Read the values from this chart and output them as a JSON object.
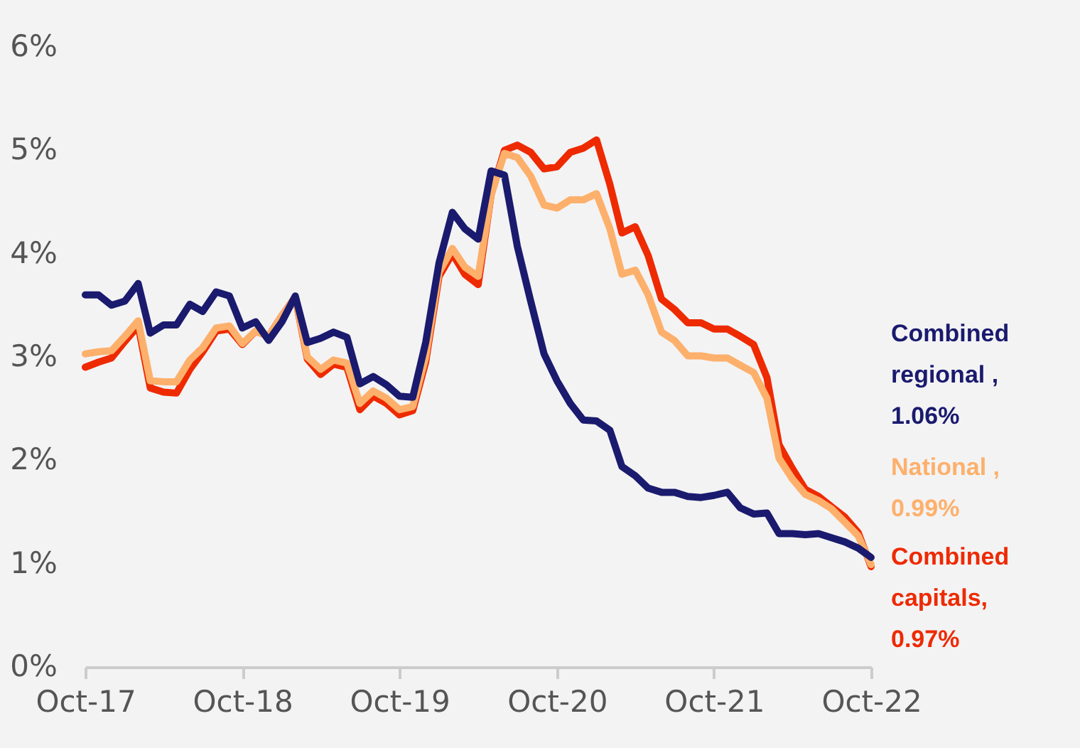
{
  "chart_data": {
    "type": "line",
    "line_style": "solid",
    "marker": "none",
    "grid": false,
    "x": [
      "2017-10",
      "2017-11",
      "2017-12",
      "2018-01",
      "2018-02",
      "2018-03",
      "2018-04",
      "2018-05",
      "2018-06",
      "2018-07",
      "2018-08",
      "2018-09",
      "2018-10",
      "2018-11",
      "2018-12",
      "2019-01",
      "2019-02",
      "2019-03",
      "2019-04",
      "2019-05",
      "2019-06",
      "2019-07",
      "2019-08",
      "2019-09",
      "2019-10",
      "2019-11",
      "2019-12",
      "2020-01",
      "2020-02",
      "2020-03",
      "2020-04",
      "2020-05",
      "2020-06",
      "2020-07",
      "2020-08",
      "2020-09",
      "2020-10",
      "2020-11",
      "2020-12",
      "2021-01",
      "2021-02",
      "2021-03",
      "2021-04",
      "2021-05",
      "2021-06",
      "2021-07",
      "2021-08",
      "2021-09",
      "2021-10",
      "2021-11",
      "2021-12",
      "2022-01",
      "2022-02",
      "2022-03",
      "2022-04",
      "2022-05",
      "2022-06",
      "2022-07",
      "2022-08",
      "2022-09",
      "2022-10"
    ],
    "xlim": [
      "2017-10",
      "2022-10"
    ],
    "xticks": [
      {
        "value": "2017-10",
        "label": "Oct-17"
      },
      {
        "value": "2018-10",
        "label": "Oct-18"
      },
      {
        "value": "2019-10",
        "label": "Oct-19"
      },
      {
        "value": "2020-10",
        "label": "Oct-20"
      },
      {
        "value": "2021-10",
        "label": "Oct-21"
      },
      {
        "value": "2022-10",
        "label": "Oct-22"
      }
    ],
    "ylim": [
      0,
      6
    ],
    "yticks": [
      {
        "value": 0,
        "label": "0%"
      },
      {
        "value": 1,
        "label": "1%"
      },
      {
        "value": 2,
        "label": "2%"
      },
      {
        "value": 3,
        "label": "3%"
      },
      {
        "value": 4,
        "label": "4%"
      },
      {
        "value": 5,
        "label": "5%"
      },
      {
        "value": 6,
        "label": "6%"
      }
    ],
    "series": [
      {
        "name": "Combined regional , 1.06%",
        "color": "#1a1a6e",
        "values": [
          3.6,
          3.6,
          3.5,
          3.54,
          3.71,
          3.23,
          3.31,
          3.31,
          3.51,
          3.44,
          3.63,
          3.59,
          3.28,
          3.34,
          3.16,
          3.34,
          3.59,
          3.14,
          3.18,
          3.24,
          3.19,
          2.74,
          2.81,
          2.73,
          2.62,
          2.61,
          3.14,
          3.91,
          4.4,
          4.24,
          4.14,
          4.8,
          4.76,
          4.07,
          3.54,
          3.03,
          2.77,
          2.55,
          2.39,
          2.38,
          2.29,
          1.94,
          1.85,
          1.73,
          1.69,
          1.69,
          1.65,
          1.64,
          1.66,
          1.69,
          1.54,
          1.48,
          1.49,
          1.29,
          1.29,
          1.28,
          1.29,
          1.25,
          1.21,
          1.15,
          1.06
        ]
      },
      {
        "name": "National , 0.99%",
        "color": "#fdb06b",
        "values": [
          3.03,
          3.05,
          3.06,
          3.2,
          3.35,
          2.77,
          2.76,
          2.76,
          2.97,
          3.09,
          3.28,
          3.3,
          3.13,
          3.25,
          3.2,
          3.4,
          3.58,
          3.0,
          2.88,
          2.97,
          2.94,
          2.55,
          2.67,
          2.6,
          2.49,
          2.52,
          3.0,
          3.82,
          4.05,
          3.87,
          3.78,
          4.57,
          4.97,
          4.93,
          4.75,
          4.47,
          4.44,
          4.52,
          4.52,
          4.58,
          4.24,
          3.8,
          3.84,
          3.6,
          3.24,
          3.16,
          3.01,
          3.01,
          2.99,
          2.99,
          2.92,
          2.85,
          2.6,
          2.02,
          1.82,
          1.67,
          1.61,
          1.53,
          1.4,
          1.27,
          0.99
        ]
      },
      {
        "name": "Combined capitals, 0.97%",
        "color": "#ee2a00",
        "values": [
          2.9,
          2.95,
          2.99,
          3.15,
          3.3,
          2.7,
          2.66,
          2.65,
          2.88,
          3.05,
          3.25,
          3.27,
          3.12,
          3.25,
          3.2,
          3.4,
          3.58,
          2.98,
          2.83,
          2.93,
          2.9,
          2.49,
          2.62,
          2.55,
          2.44,
          2.48,
          2.95,
          3.78,
          4.0,
          3.8,
          3.7,
          4.57,
          5.0,
          5.05,
          4.98,
          4.82,
          4.84,
          4.98,
          5.02,
          5.1,
          4.67,
          4.2,
          4.26,
          3.98,
          3.56,
          3.46,
          3.33,
          3.33,
          3.27,
          3.27,
          3.2,
          3.12,
          2.8,
          2.15,
          1.92,
          1.72,
          1.65,
          1.55,
          1.45,
          1.3,
          0.97
        ]
      }
    ]
  }
}
